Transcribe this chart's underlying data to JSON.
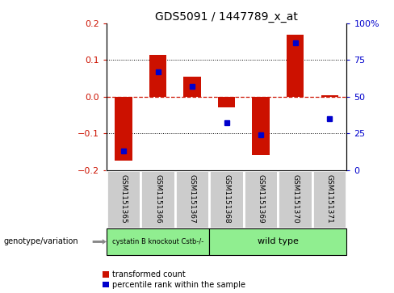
{
  "title": "GDS5091 / 1447789_x_at",
  "samples": [
    "GSM1151365",
    "GSM1151366",
    "GSM1151367",
    "GSM1151368",
    "GSM1151369",
    "GSM1151370",
    "GSM1151371"
  ],
  "red_values": [
    -0.175,
    0.115,
    0.055,
    -0.03,
    -0.16,
    0.17,
    0.005
  ],
  "blue_values_pct": [
    13,
    67,
    57,
    32,
    24,
    87,
    35
  ],
  "ylim": [
    -0.2,
    0.2
  ],
  "yticks_left": [
    -0.2,
    -0.1,
    0.0,
    0.1,
    0.2
  ],
  "yticks_right": [
    0,
    25,
    50,
    75,
    100
  ],
  "group_labels": [
    "cystatin B knockout Cstb-/-",
    "wild type"
  ],
  "group_ends": [
    3,
    7
  ],
  "bar_color": "#cc1100",
  "dot_color": "#0000cc",
  "zero_line_color": "#cc1100",
  "grid_color": "#000000",
  "label_red": "transformed count",
  "label_blue": "percentile rank within the sample",
  "bar_width": 0.5,
  "cell_facecolor": "#cccccc",
  "cell_edgecolor": "#ffffff",
  "group_facecolor": "#90EE90",
  "group_edgecolor": "#000000"
}
